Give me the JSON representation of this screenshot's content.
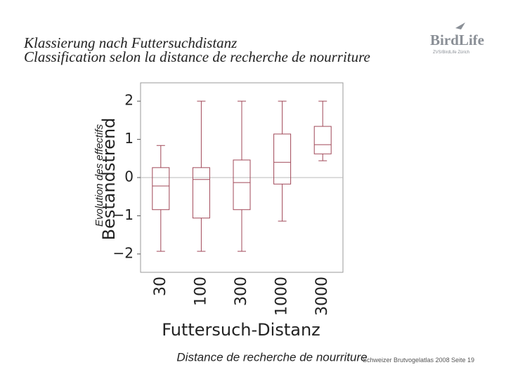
{
  "header": {
    "title": "Klassierung nach Futtersuchdistanz",
    "subtitle": "Classification selon la distance de recherche de nourriture"
  },
  "logo": {
    "name": "BirdLife",
    "sub": "ZVS/BirdLife Zürich"
  },
  "footer": {
    "source": "Schweizer Brutvogelatlas 2008",
    "page": "Seite 19"
  },
  "chart_data": {
    "type": "box",
    "ylabel": "Bestandstrend",
    "ylabel_overlay": "Evolution des effectifs",
    "xlabel": "Futtersuch-Distanz",
    "xlabel_overlay": "Distance de recherche de nourriture",
    "categories": [
      "30",
      "100",
      "300",
      "1000",
      "3000"
    ],
    "low": [
      -1.93,
      -1.93,
      -1.93,
      -1.14,
      0.44
    ],
    "q1": [
      -0.84,
      -1.06,
      -0.84,
      -0.17,
      0.62
    ],
    "median": [
      -0.22,
      -0.05,
      -0.13,
      0.4,
      0.86
    ],
    "q3": [
      0.26,
      0.26,
      0.46,
      1.14,
      1.34
    ],
    "high": [
      0.84,
      2.0,
      2.0,
      2.0,
      2.0
    ],
    "color": "#a04858",
    "ylim": [
      -2.48,
      2.48
    ],
    "yticks": [
      {
        "value": -2,
        "label": "−2"
      },
      {
        "value": -1,
        "label": "−1"
      },
      0,
      1,
      2
    ],
    "zero_line": true
  }
}
